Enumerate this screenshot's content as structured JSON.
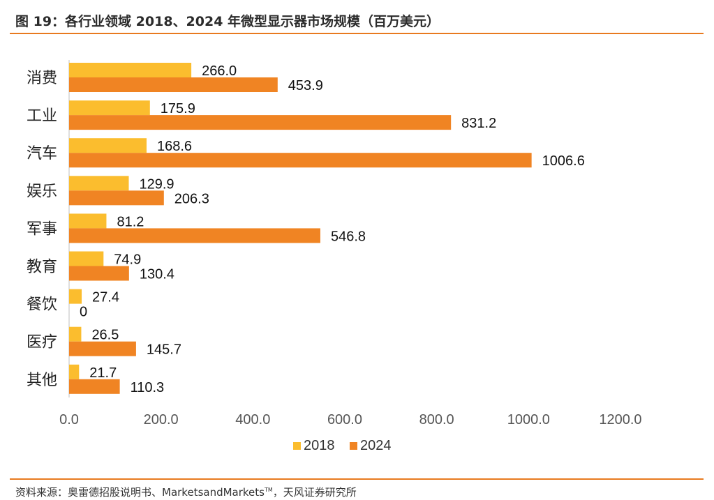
{
  "header": {
    "title": "图 19：各行业领域 2018、2024 年微型显示器市场规模（百万美元）"
  },
  "footer": {
    "source": "资料来源：奥雷德招股说明书、MarketsandMarkets",
    "source_tm": "TM",
    "source_end": "，天风证券研究所"
  },
  "chart_data": {
    "type": "bar",
    "orientation": "horizontal",
    "title": "图 19：各行业领域 2018、2024 年微型显示器市场规模（百万美元）",
    "categories": [
      "消费",
      "工业",
      "汽车",
      "娱乐",
      "军事",
      "教育",
      "餐饮",
      "医疗",
      "其他"
    ],
    "series": [
      {
        "name": "2018",
        "color": "#fbbd2e",
        "values": [
          266.0,
          175.9,
          168.6,
          129.9,
          81.2,
          74.9,
          27.4,
          26.5,
          21.7
        ],
        "labels": [
          "266.0",
          "175.9",
          "168.6",
          "129.9",
          "81.2",
          "74.9",
          "27.4",
          "26.5",
          "21.7"
        ]
      },
      {
        "name": "2024",
        "color": "#f08423",
        "values": [
          453.9,
          831.2,
          1006.6,
          206.3,
          546.8,
          130.4,
          0,
          145.7,
          110.3
        ],
        "labels": [
          "453.9",
          "831.2",
          "1006.6",
          "206.3",
          "546.8",
          "130.4",
          "0",
          "145.7",
          "110.3"
        ]
      }
    ],
    "xlim": [
      0,
      1200
    ],
    "xticks": [
      "0.0",
      "200.0",
      "400.0",
      "600.0",
      "800.0",
      "1000.0",
      "1200.0"
    ],
    "grid": false,
    "legend": "bottom"
  }
}
